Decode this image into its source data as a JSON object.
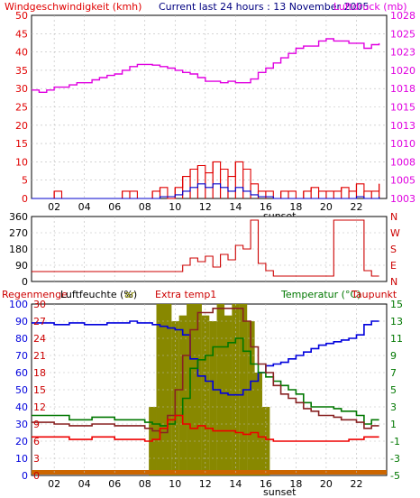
{
  "header": {
    "left_title": "Windgeschwindigkeit (kmh)",
    "center_title": "Current last 24 hours : 13 November 2005",
    "right_title": "Luftdruck (mb)"
  },
  "colors": {
    "wind": "#e00000",
    "wind_avg": "#0000cc",
    "pressure": "#e000e0",
    "direction": "#cc0000",
    "humidity": "#0000dd",
    "temperature": "#007700",
    "dewpoint": "#882222",
    "extra_temp": "#ee0000",
    "rain": "#888800",
    "gap_bar": "#cc6600",
    "axis": "#000000",
    "grid": "#ffffff",
    "sunset_shade": "#e8e8e8"
  },
  "chart_data": [
    {
      "type": "line",
      "name": "wind-pressure",
      "x_ticks": [
        "02",
        "04",
        "06",
        "08",
        "10",
        "12",
        "14",
        "16",
        "18",
        "20",
        "22"
      ],
      "x_range": [
        0.5,
        24
      ],
      "xlabel": "sunset",
      "y_left": {
        "ticks": [
          "0",
          "5",
          "10",
          "15",
          "20",
          "25",
          "30",
          "35",
          "40",
          "45",
          "50"
        ],
        "range": [
          0,
          50
        ]
      },
      "y_right": {
        "ticks": [
          "1003",
          "1005",
          "1008",
          "1010",
          "1013",
          "1015",
          "1018",
          "1020",
          "1023",
          "1025",
          "1028"
        ],
        "range": [
          1003,
          1028
        ]
      },
      "series": [
        {
          "key": "pressure",
          "x": [
            0.5,
            1.0,
            1.5,
            2.0,
            2.5,
            3.0,
            3.5,
            4.0,
            4.5,
            5.0,
            5.5,
            6.0,
            6.5,
            7.0,
            7.5,
            8.0,
            8.5,
            9.0,
            9.5,
            10.0,
            10.5,
            11.0,
            11.5,
            12.0,
            12.5,
            13.0,
            13.5,
            14.0,
            14.5,
            15.0,
            15.5,
            16.0,
            16.5,
            17.0,
            17.5,
            18.0,
            18.5,
            19.0,
            19.5,
            20.0,
            20.5,
            21.0,
            21.5,
            22.0,
            22.5,
            23.0,
            23.5
          ],
          "values": [
            1017.8,
            1017.5,
            1017.8,
            1018.2,
            1018.2,
            1018.5,
            1018.8,
            1018.8,
            1019.2,
            1019.5,
            1019.8,
            1020.0,
            1020.5,
            1021.0,
            1021.3,
            1021.3,
            1021.2,
            1021.0,
            1020.8,
            1020.5,
            1020.2,
            1020.0,
            1019.5,
            1019.0,
            1019.0,
            1018.8,
            1019.0,
            1018.8,
            1018.8,
            1019.3,
            1020.2,
            1020.8,
            1021.5,
            1022.2,
            1022.8,
            1023.5,
            1023.8,
            1023.8,
            1024.5,
            1024.8,
            1024.5,
            1024.5,
            1024.2,
            1024.2,
            1023.5,
            1024.0,
            1024.2
          ]
        },
        {
          "key": "wind",
          "x": [
            0.5,
            1.0,
            1.5,
            2.0,
            2.5,
            3.0,
            3.5,
            4.0,
            4.5,
            5.0,
            5.5,
            6.0,
            6.5,
            7.0,
            7.5,
            8.0,
            8.5,
            9.0,
            9.5,
            10.0,
            10.5,
            11.0,
            11.5,
            12.0,
            12.5,
            13.0,
            13.5,
            14.0,
            14.5,
            15.0,
            15.5,
            16.0,
            16.5,
            17.0,
            17.5,
            18.0,
            18.5,
            19.0,
            19.5,
            20.0,
            20.5,
            21.0,
            21.5,
            22.0,
            22.5,
            23.0,
            23.5
          ],
          "values": [
            0,
            0,
            0,
            2,
            0,
            0,
            0,
            0,
            0,
            0,
            0,
            0,
            2,
            2,
            0,
            0,
            2,
            3,
            0,
            3,
            6,
            8,
            9,
            7,
            10,
            8,
            6,
            10,
            8,
            4,
            2,
            2,
            0,
            2,
            2,
            0,
            2,
            3,
            2,
            2,
            2,
            3,
            2,
            4,
            2,
            2,
            4
          ]
        },
        {
          "key": "wind_avg",
          "x": [
            0.5,
            1.0,
            1.5,
            2.0,
            2.5,
            3.0,
            3.5,
            4.0,
            4.5,
            5.0,
            5.5,
            6.0,
            6.5,
            7.0,
            7.5,
            8.0,
            8.5,
            9.0,
            9.5,
            10.0,
            10.5,
            11.0,
            11.5,
            12.0,
            12.5,
            13.0,
            13.5,
            14.0,
            14.5,
            15.0,
            15.5,
            16.0,
            16.5,
            17.0,
            17.5,
            18.0,
            18.5,
            19.0,
            19.5,
            20.0,
            20.5,
            21.0,
            21.5,
            22.0,
            22.5,
            23.0,
            23.5
          ],
          "values": [
            0,
            0,
            0,
            0,
            0,
            0,
            0,
            0,
            0,
            0,
            0,
            0,
            0,
            0,
            0,
            0,
            0,
            0.5,
            0.5,
            1,
            2,
            3,
            4,
            3,
            4,
            3,
            2,
            3,
            2,
            1,
            0.5,
            0.5,
            0,
            0,
            0,
            0,
            0,
            0,
            0,
            0,
            0,
            0,
            0,
            0.5,
            0,
            0,
            0.5
          ]
        }
      ]
    },
    {
      "type": "line",
      "name": "wind-direction",
      "x_range": [
        0.5,
        24
      ],
      "y_left": {
        "ticks": [
          "0",
          "90",
          "180",
          "270",
          "360"
        ],
        "range": [
          0,
          360
        ]
      },
      "y_right": {
        "ticks": [
          "N",
          "E",
          "S",
          "W",
          "N"
        ],
        "range": [
          0,
          360
        ]
      },
      "series": [
        {
          "key": "direction",
          "x": [
            0.5,
            1.0,
            1.5,
            2.0,
            2.5,
            3.0,
            3.5,
            4.0,
            4.5,
            5.0,
            5.5,
            6.0,
            6.5,
            7.0,
            7.5,
            8.0,
            8.5,
            9.0,
            9.5,
            10.0,
            10.5,
            11.0,
            11.5,
            12.0,
            12.5,
            13.0,
            13.5,
            14.0,
            14.5,
            15.0,
            15.5,
            16.0,
            16.5,
            17.0,
            17.5,
            18.0,
            18.5,
            19.0,
            19.5,
            20.0,
            20.5,
            21.0,
            21.5,
            22.0,
            22.5,
            23.0,
            23.5
          ],
          "values": [
            55,
            55,
            55,
            55,
            55,
            55,
            55,
            55,
            55,
            55,
            55,
            55,
            55,
            55,
            55,
            55,
            55,
            55,
            55,
            55,
            90,
            130,
            110,
            140,
            80,
            150,
            120,
            200,
            180,
            340,
            100,
            60,
            30,
            30,
            30,
            30,
            30,
            30,
            30,
            30,
            340,
            340,
            340,
            340,
            60,
            30,
            30
          ]
        }
      ]
    },
    {
      "type": "line",
      "name": "humidity-temperature",
      "legend": [
        "Regenmenge",
        "Luftfeuchte (%)",
        "Extra temp1",
        "Temperatur (°C)",
        "Taupunkt"
      ],
      "legend_extra": "ar",
      "x_ticks": [
        "02",
        "04",
        "06",
        "08",
        "10",
        "12",
        "14",
        "16",
        "18",
        "20",
        "22"
      ],
      "x_range": [
        0.5,
        24
      ],
      "xlabel": "sunset",
      "y_left": {
        "ticks": [
          "0",
          "10",
          "20",
          "30",
          "40",
          "50",
          "60",
          "70",
          "80",
          "90",
          "100"
        ],
        "range": [
          0,
          100
        ]
      },
      "y_left2": {
        "ticks": [
          "0",
          "3",
          "6",
          "9",
          "12",
          "15",
          "18",
          "21",
          "24",
          "27",
          "30"
        ],
        "range": [
          0,
          30
        ]
      },
      "y_right": {
        "ticks": [
          "-5",
          "-3",
          "-1",
          "1",
          "3",
          "5",
          "7",
          "9",
          "11",
          "13",
          "15"
        ],
        "range": [
          -5,
          15
        ]
      },
      "series": [
        {
          "key": "humidity",
          "x": [
            0.5,
            1.0,
            1.5,
            2.0,
            2.5,
            3.0,
            3.5,
            4.0,
            4.5,
            5.0,
            5.5,
            6.0,
            6.5,
            7.0,
            7.5,
            8.0,
            8.5,
            9.0,
            9.5,
            10.0,
            10.5,
            11.0,
            11.5,
            12.0,
            12.5,
            13.0,
            13.5,
            14.0,
            14.5,
            15.0,
            15.5,
            16.0,
            16.5,
            17.0,
            17.5,
            18.0,
            18.5,
            19.0,
            19.5,
            20.0,
            20.5,
            21.0,
            21.5,
            22.0,
            22.5,
            23.0,
            23.5
          ],
          "values": [
            89,
            89,
            89,
            88,
            88,
            89,
            89,
            88,
            88,
            88,
            89,
            89,
            89,
            90,
            89,
            89,
            88,
            87,
            86,
            85,
            82,
            68,
            58,
            55,
            50,
            48,
            47,
            47,
            50,
            55,
            60,
            64,
            65,
            66,
            68,
            70,
            72,
            74,
            76,
            77,
            78,
            79,
            80,
            82,
            88,
            90,
            90
          ]
        },
        {
          "key": "temperature",
          "x": [
            0.5,
            1.0,
            1.5,
            2.0,
            2.5,
            3.0,
            3.5,
            4.0,
            4.5,
            5.0,
            5.5,
            6.0,
            6.5,
            7.0,
            7.5,
            8.0,
            8.5,
            9.0,
            9.5,
            10.0,
            10.5,
            11.0,
            11.5,
            12.0,
            12.5,
            13.0,
            13.5,
            14.0,
            14.5,
            15.0,
            15.5,
            16.0,
            16.5,
            17.0,
            17.5,
            18.0,
            18.5,
            19.0,
            19.5,
            20.0,
            20.5,
            21.0,
            21.5,
            22.0,
            22.5,
            23.0,
            23.5
          ],
          "values": [
            2.0,
            2.0,
            2.0,
            2.0,
            2.0,
            1.5,
            1.5,
            1.5,
            1.8,
            1.8,
            1.8,
            1.5,
            1.5,
            1.5,
            1.5,
            1.2,
            1.0,
            0.8,
            1.0,
            2.0,
            4.0,
            7.5,
            8.5,
            9.0,
            10.0,
            10.0,
            10.5,
            11.0,
            9.5,
            8.0,
            7.0,
            6.5,
            6.0,
            5.5,
            5.0,
            4.5,
            3.5,
            3.0,
            3.0,
            3.0,
            2.8,
            2.5,
            2.5,
            2.0,
            1.0,
            1.5,
            1.5
          ]
        },
        {
          "key": "dewpoint",
          "x": [
            0.5,
            1.0,
            1.5,
            2.0,
            2.5,
            3.0,
            3.5,
            4.0,
            4.5,
            5.0,
            5.5,
            6.0,
            6.5,
            7.0,
            7.5,
            8.0,
            8.5,
            9.0,
            9.5,
            10.0,
            10.5,
            11.0,
            11.5,
            12.0,
            12.5,
            13.0,
            13.5,
            14.0,
            14.5,
            15.0,
            15.5,
            16.0,
            16.5,
            17.0,
            17.5,
            18.0,
            18.5,
            19.0,
            19.5,
            20.0,
            20.5,
            21.0,
            21.5,
            22.0,
            22.5,
            23.0,
            23.5
          ],
          "values": [
            1.2,
            1.2,
            1.2,
            1.0,
            1.0,
            0.8,
            0.8,
            0.8,
            1.0,
            1.0,
            1.0,
            0.8,
            0.8,
            0.8,
            0.8,
            0.5,
            0.2,
            0.0,
            2.0,
            5.0,
            9.0,
            12.0,
            14.0,
            14.0,
            14.5,
            14.5,
            14.5,
            14.5,
            13.0,
            10.0,
            8.0,
            7.0,
            5.5,
            4.5,
            4.0,
            3.5,
            2.8,
            2.5,
            2.0,
            2.0,
            1.8,
            1.5,
            1.5,
            1.2,
            0.5,
            0.8,
            0.8
          ]
        },
        {
          "key": "extra_temp",
          "x": [
            0.5,
            1.0,
            1.5,
            2.0,
            2.5,
            3.0,
            3.5,
            4.0,
            4.5,
            5.0,
            5.5,
            6.0,
            6.5,
            7.0,
            7.5,
            8.0,
            8.5,
            9.0,
            9.5,
            10.0,
            10.5,
            11.0,
            11.5,
            12.0,
            12.5,
            13.0,
            13.5,
            14.0,
            14.5,
            15.0,
            15.5,
            16.0,
            16.5,
            17.0,
            17.5,
            18.0,
            18.5,
            19.0,
            19.5,
            20.0,
            20.5,
            21.0,
            21.5,
            22.0,
            22.5,
            23.0,
            23.5
          ],
          "values": [
            -0.5,
            -0.5,
            -0.5,
            -0.5,
            -0.5,
            -0.8,
            -0.8,
            -0.8,
            -0.5,
            -0.5,
            -0.5,
            -0.8,
            -0.8,
            -0.8,
            -0.8,
            -1.0,
            -0.8,
            0.5,
            1.5,
            2.0,
            1.0,
            0.5,
            0.8,
            0.5,
            0.2,
            0.2,
            0.2,
            0.0,
            -0.2,
            0.0,
            -0.5,
            -0.8,
            -1.0,
            -1.0,
            -1.0,
            -1.0,
            -1.0,
            -1.0,
            -1.0,
            -1.0,
            -1.0,
            -1.0,
            -0.8,
            -0.8,
            -0.5,
            -0.5,
            -0.5
          ]
        },
        {
          "key": "rain",
          "x": [
            0.5,
            1.0,
            1.5,
            2.0,
            2.5,
            3.0,
            3.5,
            4.0,
            4.5,
            5.0,
            5.5,
            6.0,
            6.5,
            7.0,
            7.5,
            8.0,
            8.5,
            9.0,
            9.5,
            10.0,
            10.5,
            11.0,
            11.5,
            12.0,
            12.5,
            13.0,
            13.5,
            14.0,
            14.5,
            15.0,
            15.5,
            16.0,
            16.5,
            17.0,
            17.5,
            18.0,
            18.5,
            19.0,
            19.5,
            20.0,
            20.5,
            21.0,
            21.5,
            22.0,
            22.5,
            23.0,
            23.5
          ],
          "values": [
            0,
            0,
            0,
            0,
            0,
            0,
            0,
            0,
            0,
            0,
            0,
            0,
            0,
            0,
            0,
            0,
            12,
            30,
            30,
            27,
            28,
            30,
            30,
            28,
            27,
            30,
            28,
            30,
            30,
            27,
            18,
            12,
            0,
            0,
            0,
            0,
            0,
            0,
            0,
            0,
            0,
            0,
            0,
            0,
            0,
            0,
            0
          ]
        }
      ]
    }
  ]
}
